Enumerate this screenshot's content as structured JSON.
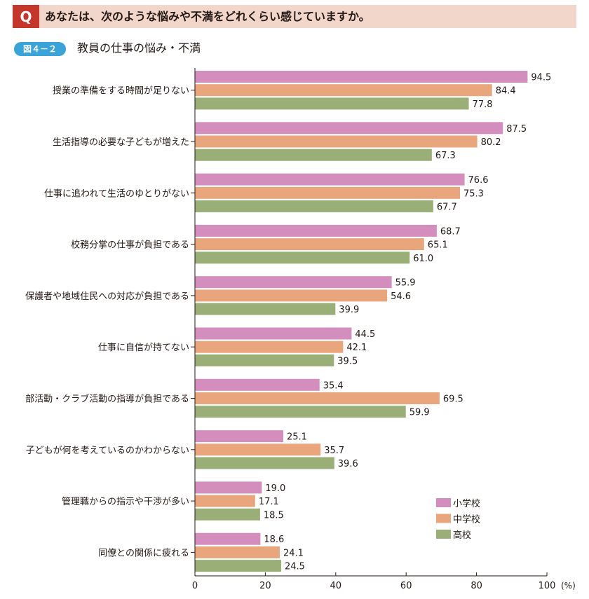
{
  "question": {
    "badge": "Q",
    "text": "あなたは、次のような悩みや不満をどれくらい感じていますか。"
  },
  "figure": {
    "tag": "図４－２",
    "title": "教員の仕事の悩み・不満"
  },
  "colors": {
    "primary": "#d48ebd",
    "middle": "#e9a57b",
    "high": "#9aae77",
    "accent_q": "#c5362b",
    "accent_fig": "#3aa3d8"
  },
  "chart_data": {
    "type": "bar",
    "orientation": "horizontal",
    "categories": [
      "授業の準備をする時間が足りない",
      "生活指導の必要な子どもが増えた",
      "仕事に追われて生活のゆとりがない",
      "校務分掌の仕事が負担である",
      "保護者や地域住民への対応が負担である",
      "仕事に自信が持てない",
      "部活動・クラブ活動の指導が負担である",
      "子どもが何を考えているのかわからない",
      "管理職からの指示や干渉が多い",
      "同僚との関係に疲れる"
    ],
    "series": [
      {
        "name": "小学校",
        "values": [
          94.5,
          87.5,
          76.6,
          68.7,
          55.9,
          44.5,
          35.4,
          25.1,
          19.0,
          18.6
        ]
      },
      {
        "name": "中学校",
        "values": [
          84.4,
          80.2,
          75.3,
          65.1,
          54.6,
          42.1,
          69.5,
          35.7,
          17.1,
          24.1
        ]
      },
      {
        "name": "高校",
        "values": [
          77.8,
          67.3,
          67.7,
          61.0,
          39.9,
          39.5,
          59.9,
          39.6,
          18.5,
          24.5
        ]
      }
    ],
    "value_labels": [
      [
        "94.5",
        "87.5",
        "76.6",
        "68.7",
        "55.9",
        "44.5",
        "35.4",
        "25.1",
        "19.0",
        "18.6"
      ],
      [
        "84.4",
        "80.2",
        "75.3",
        "65.1",
        "54.6",
        "42.1",
        "69.5",
        "35.7",
        "17.1",
        "24.1"
      ],
      [
        "77.8",
        "67.3",
        "67.7",
        "61.0",
        "39.9",
        "39.5",
        "59.9",
        "39.6",
        "18.5",
        "24.5"
      ]
    ],
    "xlim": [
      0,
      100
    ],
    "xticks": [
      "0",
      "20",
      "40",
      "60",
      "80",
      "100"
    ],
    "x_unit": "(%)",
    "legend_position": "bottom-right",
    "grid": false
  }
}
